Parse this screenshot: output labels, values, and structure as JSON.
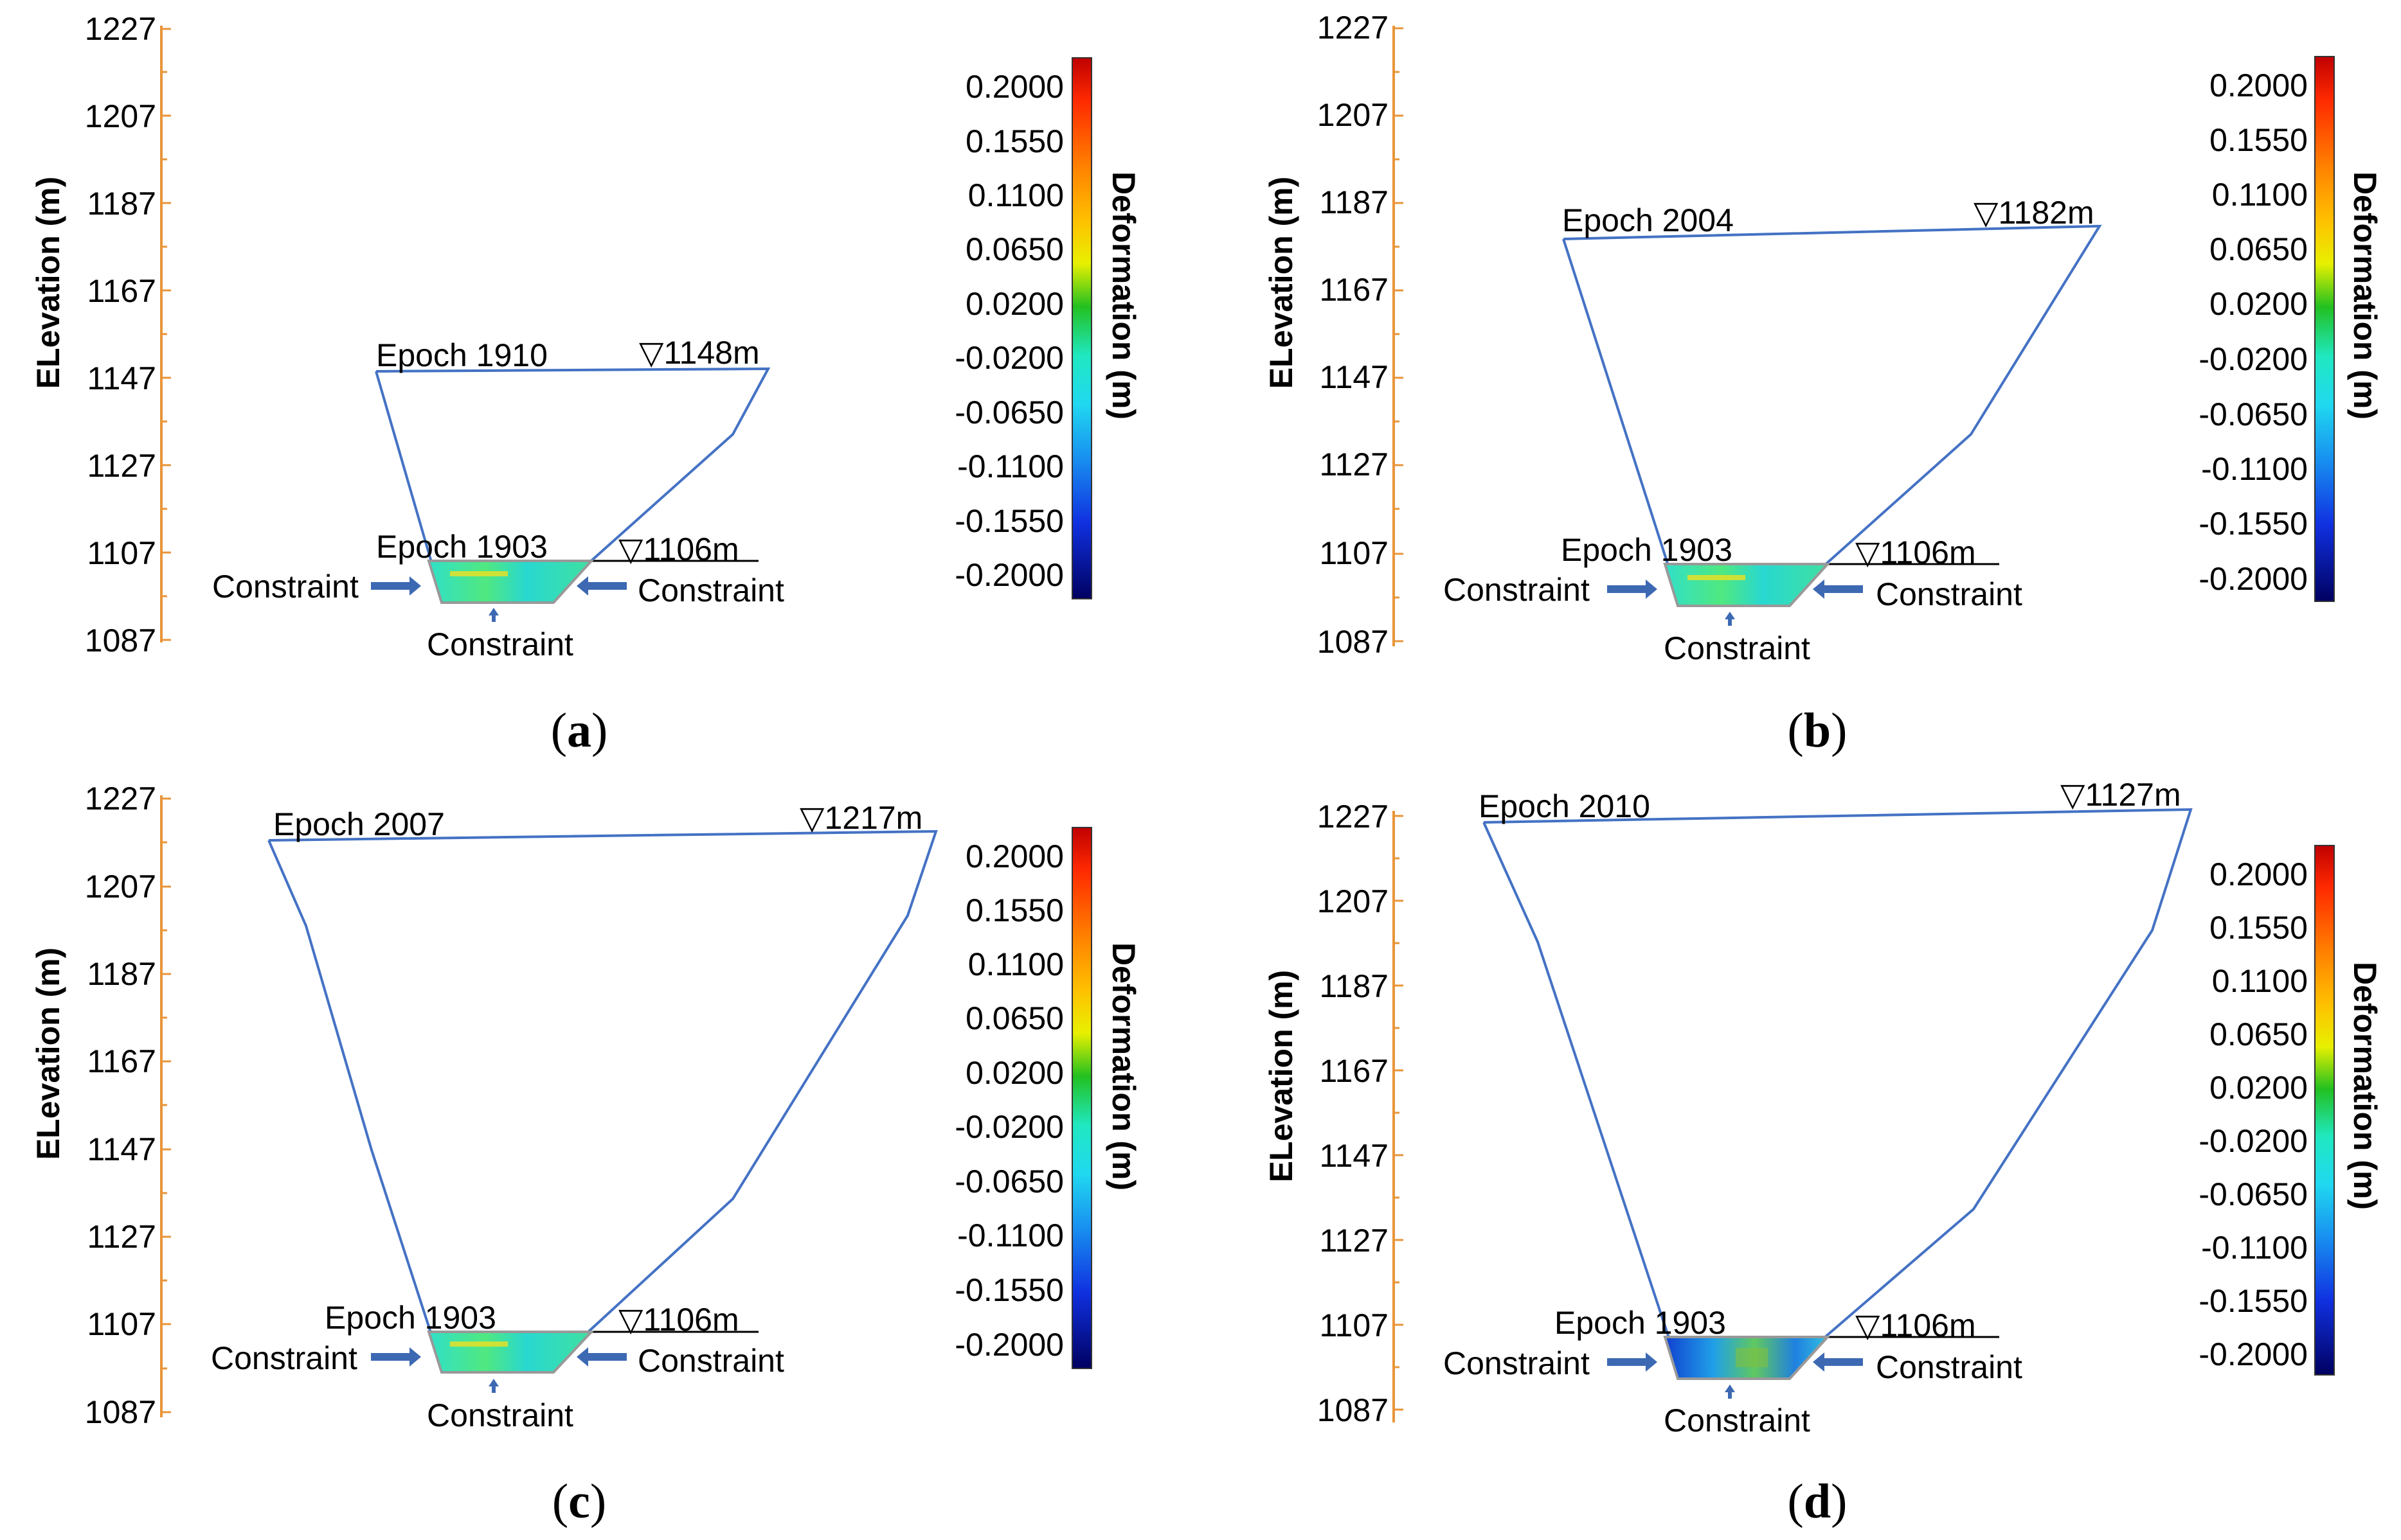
{
  "figure": {
    "axis_title": "ELevation (m)",
    "tick_labels": [
      "1227",
      "1207",
      "1187",
      "1167",
      "1147",
      "1127",
      "1107",
      "1087"
    ],
    "colorbar": {
      "title": "Deformation (m)",
      "labels": [
        "0.2000",
        "0.1550",
        "0.1100",
        "0.0650",
        "0.0200",
        "-0.0200",
        "-0.0650",
        "-0.1100",
        "-0.1550",
        "-0.2000"
      ]
    },
    "base_epoch_label": "Epoch 1903",
    "base_water_label": "▽1106m",
    "constraint_label": "Constraint",
    "panels": [
      {
        "caption_letter": "a",
        "epoch_label": "Epoch 1910",
        "water_label": "▽1148m"
      },
      {
        "caption_letter": "b",
        "epoch_label": "Epoch 2004",
        "water_label": "▽1182m"
      },
      {
        "caption_letter": "c",
        "epoch_label": "Epoch 2007",
        "water_label": "▽1217m"
      },
      {
        "caption_letter": "d",
        "epoch_label": "Epoch 2010",
        "water_label": "▽1127m"
      }
    ]
  },
  "colors": {
    "axis": "#e8953a",
    "outline": "#4472c4",
    "arrow": "#3d69b3",
    "text": "#000000"
  }
}
